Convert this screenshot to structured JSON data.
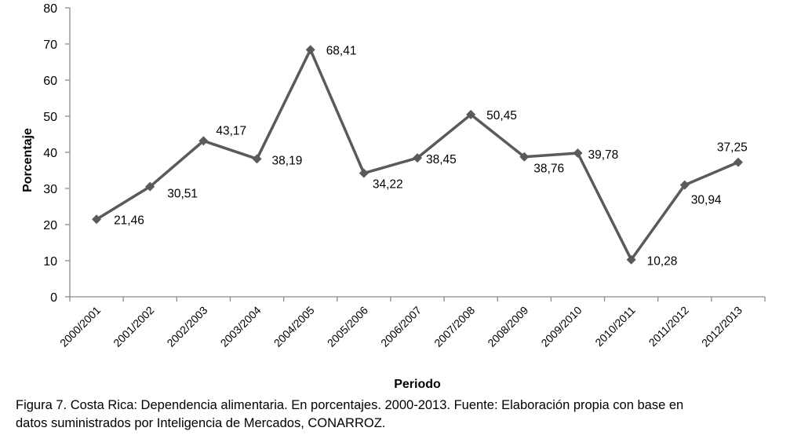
{
  "chart_data": {
    "type": "line",
    "title": "",
    "xlabel": "Periodo",
    "ylabel": "Porcentaje",
    "ylim": [
      0,
      80
    ],
    "yticks": [
      0,
      10,
      20,
      30,
      40,
      50,
      60,
      70,
      80
    ],
    "grid": false,
    "legend": "none",
    "categories": [
      "2000/2001",
      "2001/2002",
      "2002/2003",
      "2003/2004",
      "2004/2005",
      "2005/2006",
      "2006/2007",
      "2007/2008",
      "2008/2009",
      "2009/2010",
      "2010/2011",
      "2011/2012",
      "2012/2013"
    ],
    "series": [
      {
        "name": "Dependencia alimentaria",
        "values": [
          21.46,
          30.51,
          43.17,
          38.19,
          68.41,
          34.22,
          38.45,
          50.45,
          38.76,
          39.78,
          10.28,
          30.94,
          37.25
        ]
      }
    ],
    "data_labels": [
      "21,46",
      "30,51",
      "43,17",
      "38,19",
      "68,41",
      "34,22",
      "38,45",
      "50,45",
      "38,76",
      "39,78",
      "10,28",
      "30,94",
      "37,25"
    ],
    "line_color": "#5a5a5a",
    "axis_color": "#8c8c8c"
  },
  "caption": {
    "line1": "Figura 7. Costa Rica: Dependencia alimentaria. En porcentajes. 2000-2013. Fuente: Elaboración propia con base en",
    "line2": "datos suministrados por Inteligencia de Mercados, CONARROZ."
  }
}
